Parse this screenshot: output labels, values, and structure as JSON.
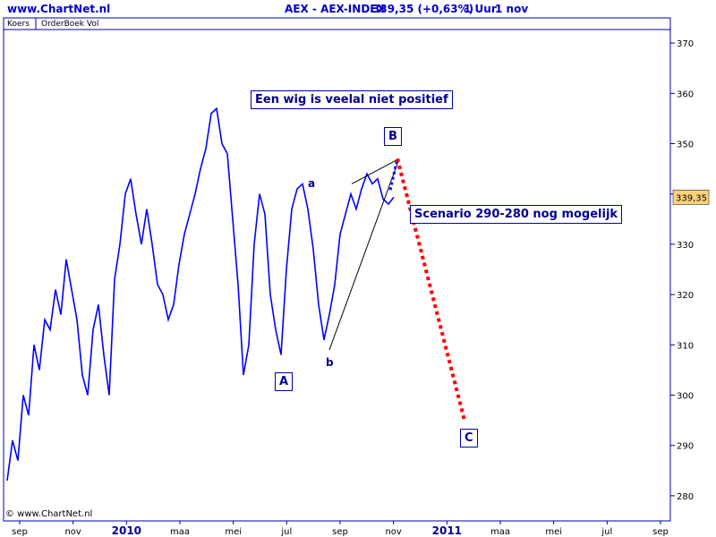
{
  "header": {
    "site": "www.ChartNet.nl",
    "instrument": "AEX - AEX-INDEX",
    "quote": "339,35 (+0,63%)",
    "interval": "1 Uur",
    "date": "1 nov"
  },
  "tabs": [
    "Koers",
    "OrderBoek Vol"
  ],
  "copyright": "© www.ChartNet.nl",
  "colors": {
    "price": "#0000ff",
    "scenario": "#ff0000",
    "frame": "#0000aa",
    "price_label_bg": "#ffd27a"
  },
  "chart_data": {
    "type": "line",
    "title": "AEX - AEX-INDEX",
    "xlabel": "",
    "ylabel": "",
    "ylim": [
      275,
      375
    ],
    "yticks": [
      280,
      290,
      300,
      310,
      320,
      330,
      340,
      350,
      360,
      370
    ],
    "x_ticks": [
      "sep",
      "nov",
      "2010",
      "maa",
      "mei",
      "jul",
      "sep",
      "nov",
      "2011",
      "maa",
      "mei",
      "jul",
      "sep"
    ],
    "last_price_label": "339,35",
    "series": [
      {
        "values": [
          283,
          291,
          287,
          300,
          296,
          310,
          305,
          315,
          313,
          321,
          316,
          327,
          321,
          315,
          304,
          300,
          313,
          318,
          308,
          300,
          323,
          330,
          340,
          343,
          336,
          330,
          337,
          330,
          322,
          320,
          315,
          318,
          326,
          332,
          336,
          340,
          345,
          349,
          356,
          357,
          350,
          348,
          335,
          322,
          304,
          310,
          330,
          340,
          336,
          320,
          313,
          308,
          325,
          337,
          341,
          342,
          337,
          329,
          318,
          311,
          316,
          322,
          332,
          336,
          340,
          337,
          341,
          344,
          342,
          343,
          339,
          338,
          339.35
        ]
      }
    ],
    "scenario_path": {
      "name": "Scenario 290-280",
      "from": 347,
      "to": 295
    },
    "wedge": {
      "upper": [
        342,
        347
      ],
      "lower": [
        309,
        339
      ]
    },
    "annotations": [
      "Een wig is veelal niet positief",
      "Scenario 290-280 nog mogelijk",
      "A",
      "B",
      "C",
      "a",
      "b"
    ]
  }
}
